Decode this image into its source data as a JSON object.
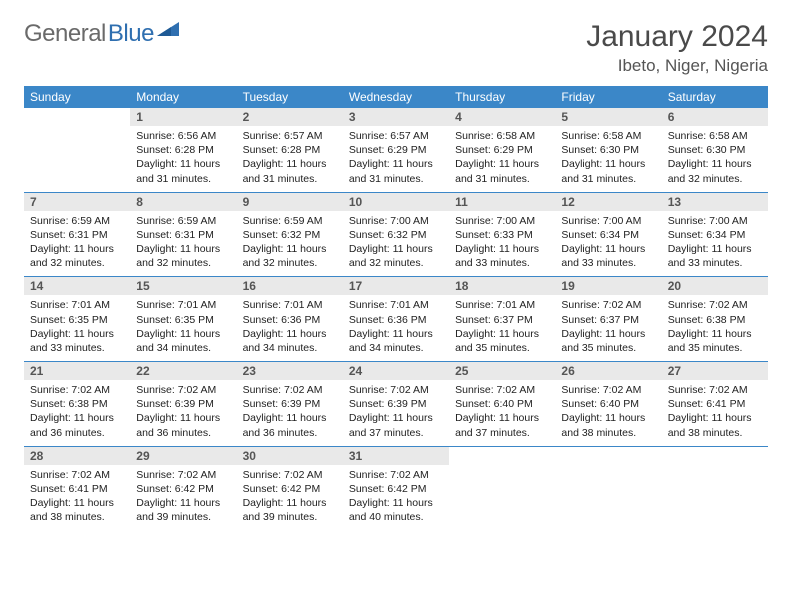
{
  "logo": {
    "text_general": "General",
    "text_blue": "Blue"
  },
  "title": "January 2024",
  "location": "Ibeto, Niger, Nigeria",
  "colors": {
    "header_bg": "#3b87c8",
    "header_text": "#ffffff",
    "daynum_bg": "#e9e9e9",
    "rule": "#3b87c8",
    "logo_gray": "#6a6a6a",
    "logo_blue": "#2f6fb0"
  },
  "day_headers": [
    "Sunday",
    "Monday",
    "Tuesday",
    "Wednesday",
    "Thursday",
    "Friday",
    "Saturday"
  ],
  "weeks": [
    [
      {
        "num": "",
        "lines": []
      },
      {
        "num": "1",
        "lines": [
          "Sunrise: 6:56 AM",
          "Sunset: 6:28 PM",
          "Daylight: 11 hours",
          "and 31 minutes."
        ]
      },
      {
        "num": "2",
        "lines": [
          "Sunrise: 6:57 AM",
          "Sunset: 6:28 PM",
          "Daylight: 11 hours",
          "and 31 minutes."
        ]
      },
      {
        "num": "3",
        "lines": [
          "Sunrise: 6:57 AM",
          "Sunset: 6:29 PM",
          "Daylight: 11 hours",
          "and 31 minutes."
        ]
      },
      {
        "num": "4",
        "lines": [
          "Sunrise: 6:58 AM",
          "Sunset: 6:29 PM",
          "Daylight: 11 hours",
          "and 31 minutes."
        ]
      },
      {
        "num": "5",
        "lines": [
          "Sunrise: 6:58 AM",
          "Sunset: 6:30 PM",
          "Daylight: 11 hours",
          "and 31 minutes."
        ]
      },
      {
        "num": "6",
        "lines": [
          "Sunrise: 6:58 AM",
          "Sunset: 6:30 PM",
          "Daylight: 11 hours",
          "and 32 minutes."
        ]
      }
    ],
    [
      {
        "num": "7",
        "lines": [
          "Sunrise: 6:59 AM",
          "Sunset: 6:31 PM",
          "Daylight: 11 hours",
          "and 32 minutes."
        ]
      },
      {
        "num": "8",
        "lines": [
          "Sunrise: 6:59 AM",
          "Sunset: 6:31 PM",
          "Daylight: 11 hours",
          "and 32 minutes."
        ]
      },
      {
        "num": "9",
        "lines": [
          "Sunrise: 6:59 AM",
          "Sunset: 6:32 PM",
          "Daylight: 11 hours",
          "and 32 minutes."
        ]
      },
      {
        "num": "10",
        "lines": [
          "Sunrise: 7:00 AM",
          "Sunset: 6:32 PM",
          "Daylight: 11 hours",
          "and 32 minutes."
        ]
      },
      {
        "num": "11",
        "lines": [
          "Sunrise: 7:00 AM",
          "Sunset: 6:33 PM",
          "Daylight: 11 hours",
          "and 33 minutes."
        ]
      },
      {
        "num": "12",
        "lines": [
          "Sunrise: 7:00 AM",
          "Sunset: 6:34 PM",
          "Daylight: 11 hours",
          "and 33 minutes."
        ]
      },
      {
        "num": "13",
        "lines": [
          "Sunrise: 7:00 AM",
          "Sunset: 6:34 PM",
          "Daylight: 11 hours",
          "and 33 minutes."
        ]
      }
    ],
    [
      {
        "num": "14",
        "lines": [
          "Sunrise: 7:01 AM",
          "Sunset: 6:35 PM",
          "Daylight: 11 hours",
          "and 33 minutes."
        ]
      },
      {
        "num": "15",
        "lines": [
          "Sunrise: 7:01 AM",
          "Sunset: 6:35 PM",
          "Daylight: 11 hours",
          "and 34 minutes."
        ]
      },
      {
        "num": "16",
        "lines": [
          "Sunrise: 7:01 AM",
          "Sunset: 6:36 PM",
          "Daylight: 11 hours",
          "and 34 minutes."
        ]
      },
      {
        "num": "17",
        "lines": [
          "Sunrise: 7:01 AM",
          "Sunset: 6:36 PM",
          "Daylight: 11 hours",
          "and 34 minutes."
        ]
      },
      {
        "num": "18",
        "lines": [
          "Sunrise: 7:01 AM",
          "Sunset: 6:37 PM",
          "Daylight: 11 hours",
          "and 35 minutes."
        ]
      },
      {
        "num": "19",
        "lines": [
          "Sunrise: 7:02 AM",
          "Sunset: 6:37 PM",
          "Daylight: 11 hours",
          "and 35 minutes."
        ]
      },
      {
        "num": "20",
        "lines": [
          "Sunrise: 7:02 AM",
          "Sunset: 6:38 PM",
          "Daylight: 11 hours",
          "and 35 minutes."
        ]
      }
    ],
    [
      {
        "num": "21",
        "lines": [
          "Sunrise: 7:02 AM",
          "Sunset: 6:38 PM",
          "Daylight: 11 hours",
          "and 36 minutes."
        ]
      },
      {
        "num": "22",
        "lines": [
          "Sunrise: 7:02 AM",
          "Sunset: 6:39 PM",
          "Daylight: 11 hours",
          "and 36 minutes."
        ]
      },
      {
        "num": "23",
        "lines": [
          "Sunrise: 7:02 AM",
          "Sunset: 6:39 PM",
          "Daylight: 11 hours",
          "and 36 minutes."
        ]
      },
      {
        "num": "24",
        "lines": [
          "Sunrise: 7:02 AM",
          "Sunset: 6:39 PM",
          "Daylight: 11 hours",
          "and 37 minutes."
        ]
      },
      {
        "num": "25",
        "lines": [
          "Sunrise: 7:02 AM",
          "Sunset: 6:40 PM",
          "Daylight: 11 hours",
          "and 37 minutes."
        ]
      },
      {
        "num": "26",
        "lines": [
          "Sunrise: 7:02 AM",
          "Sunset: 6:40 PM",
          "Daylight: 11 hours",
          "and 38 minutes."
        ]
      },
      {
        "num": "27",
        "lines": [
          "Sunrise: 7:02 AM",
          "Sunset: 6:41 PM",
          "Daylight: 11 hours",
          "and 38 minutes."
        ]
      }
    ],
    [
      {
        "num": "28",
        "lines": [
          "Sunrise: 7:02 AM",
          "Sunset: 6:41 PM",
          "Daylight: 11 hours",
          "and 38 minutes."
        ]
      },
      {
        "num": "29",
        "lines": [
          "Sunrise: 7:02 AM",
          "Sunset: 6:42 PM",
          "Daylight: 11 hours",
          "and 39 minutes."
        ]
      },
      {
        "num": "30",
        "lines": [
          "Sunrise: 7:02 AM",
          "Sunset: 6:42 PM",
          "Daylight: 11 hours",
          "and 39 minutes."
        ]
      },
      {
        "num": "31",
        "lines": [
          "Sunrise: 7:02 AM",
          "Sunset: 6:42 PM",
          "Daylight: 11 hours",
          "and 40 minutes."
        ]
      },
      {
        "num": "",
        "lines": []
      },
      {
        "num": "",
        "lines": []
      },
      {
        "num": "",
        "lines": []
      }
    ]
  ]
}
